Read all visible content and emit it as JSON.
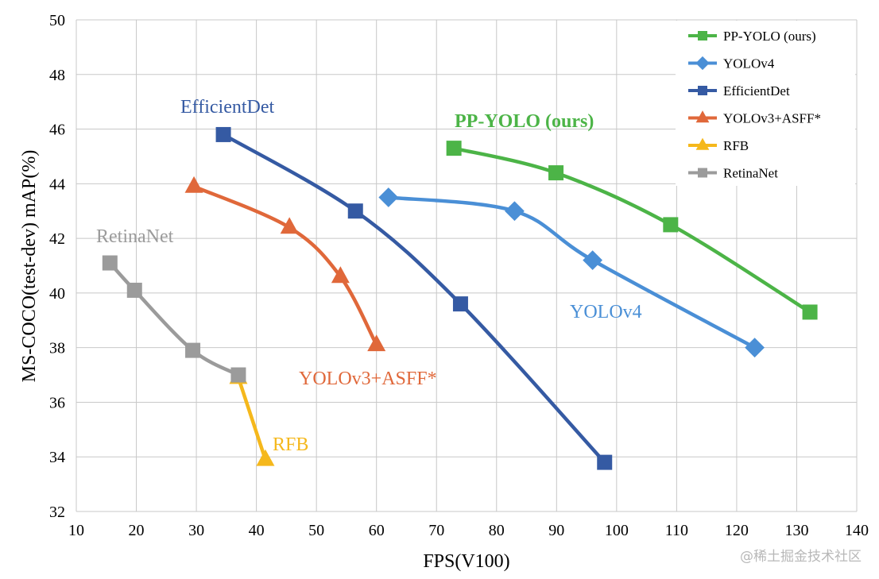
{
  "chart_data": {
    "type": "line",
    "xlabel": "FPS(V100)",
    "ylabel": "MS-COCO(test-dev) mAP(%)",
    "xlim": [
      10,
      140
    ],
    "ylim": [
      32,
      50
    ],
    "xticks": [
      10,
      20,
      30,
      40,
      50,
      60,
      70,
      80,
      90,
      100,
      110,
      120,
      130,
      140
    ],
    "yticks": [
      32,
      34,
      36,
      38,
      40,
      42,
      44,
      46,
      48,
      50
    ],
    "grid": true,
    "legend_position": "top-right",
    "series": [
      {
        "key": "ppyolo",
        "name": "PP-YOLO (ours)",
        "color": "#4cb447",
        "marker": "square",
        "points": [
          [
            72.9,
            45.3
          ],
          [
            89.9,
            44.4
          ],
          [
            109.0,
            42.5
          ],
          [
            132.2,
            39.3
          ]
        ],
        "annotation": "PP-YOLO (ours)"
      },
      {
        "key": "yolov4",
        "name": "YOLOv4",
        "color": "#4a8fd6",
        "marker": "diamond",
        "points": [
          [
            62.0,
            43.5
          ],
          [
            83.0,
            43.0
          ],
          [
            96.0,
            41.2
          ],
          [
            123.0,
            38.0
          ]
        ],
        "annotation": "YOLOv4"
      },
      {
        "key": "efficientdet",
        "name": "EfficientDet",
        "color": "#355aa3",
        "marker": "square",
        "points": [
          [
            34.5,
            45.8
          ],
          [
            56.5,
            43.0
          ],
          [
            74.0,
            39.6
          ],
          [
            98.0,
            33.8
          ]
        ],
        "annotation": "EfficientDet"
      },
      {
        "key": "yolov3asff",
        "name": "YOLOv3+ASFF*",
        "color": "#e0683a",
        "marker": "triangle",
        "points": [
          [
            29.6,
            43.9
          ],
          [
            45.5,
            42.4
          ],
          [
            54.0,
            40.6
          ],
          [
            60.0,
            38.1
          ]
        ],
        "annotation": "YOLOv3+ASFF*"
      },
      {
        "key": "rfb",
        "name": "RFB",
        "color": "#f5b81c",
        "marker": "triangle",
        "points": [
          [
            37.0,
            36.9
          ],
          [
            41.5,
            33.9
          ]
        ],
        "annotation": "RFB"
      },
      {
        "key": "retinanet",
        "name": "RetinaNet",
        "color": "#9b9b9b",
        "marker": "square",
        "points": [
          [
            15.6,
            41.1
          ],
          [
            19.7,
            40.1
          ],
          [
            29.4,
            37.9
          ],
          [
            37.0,
            37.0
          ]
        ],
        "annotation": "RetinaNet"
      }
    ]
  },
  "watermark": "@稀土掘金技术社区"
}
